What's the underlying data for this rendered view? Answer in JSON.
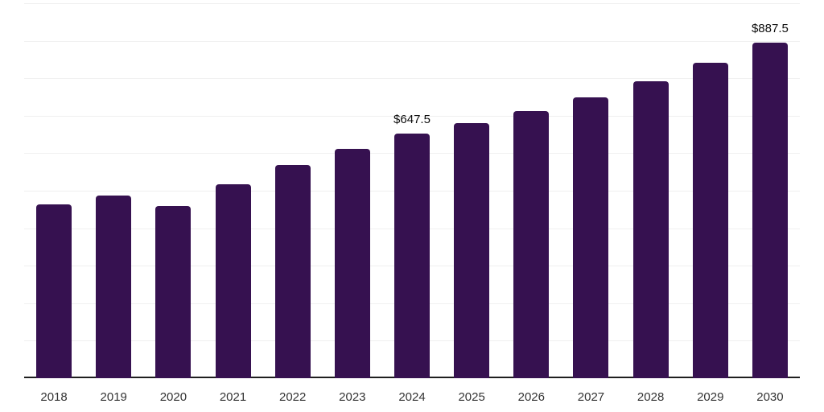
{
  "chart_data": {
    "type": "bar",
    "title": "",
    "xlabel": "",
    "ylabel": "",
    "categories": [
      "2018",
      "2019",
      "2020",
      "2021",
      "2022",
      "2023",
      "2024",
      "2025",
      "2026",
      "2027",
      "2028",
      "2029",
      "2030"
    ],
    "values": [
      460,
      482.5,
      455,
      512.5,
      565,
      607.5,
      647.5,
      675,
      707.5,
      742.5,
      785,
      835,
      887.5
    ],
    "data_labels": {
      "2024": "$647.5",
      "2030": "$887.5"
    },
    "value_prefix": "$",
    "ylim": [
      0,
      1000
    ],
    "grid": {
      "visible": true,
      "step": 100,
      "color": "#f0f0f0"
    },
    "legend": "none",
    "colors": {
      "bar": "#361150",
      "axis_line": "#1f1f1f",
      "tick_label": "#333333",
      "data_label": "#0d0d0d",
      "background": "#ffffff"
    }
  }
}
